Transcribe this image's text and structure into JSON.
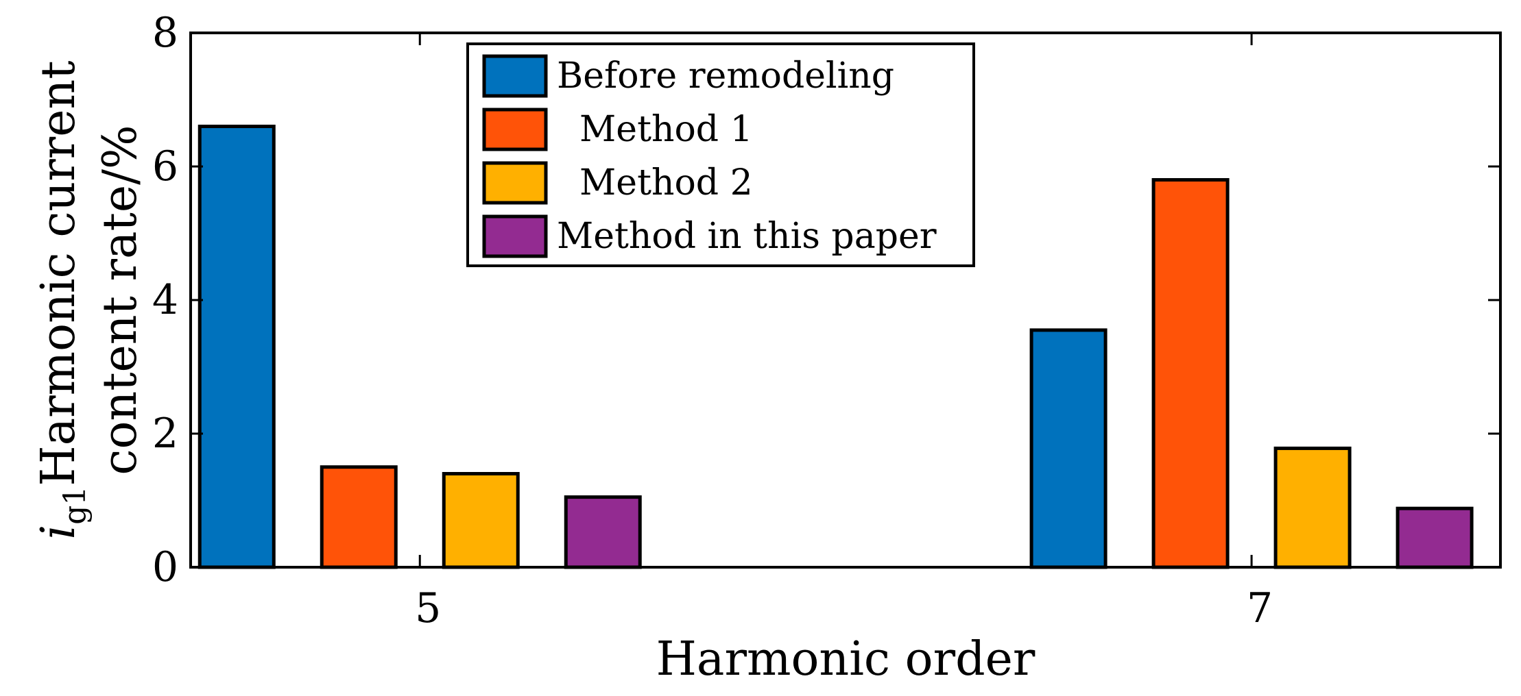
{
  "chart_data": {
    "type": "bar",
    "xlabel": "Harmonic order",
    "ylabel": {
      "line1_prefix_italic": "i",
      "line1_subscript": "g1",
      "line1_text": "Harmonic current",
      "line2": "content rate/%"
    },
    "categories": [
      "5",
      "7"
    ],
    "ylim": [
      0,
      8
    ],
    "yticks": [
      "0",
      "2",
      "4",
      "6",
      "8"
    ],
    "series": [
      {
        "name": "Before remodeling",
        "color": "#0072BD",
        "values": [
          6.6,
          3.55
        ]
      },
      {
        "name": "  Method 1",
        "color": "#FF5308",
        "values": [
          1.5,
          5.8
        ]
      },
      {
        "name": "  Method 2",
        "color": "#FFB000",
        "values": [
          1.4,
          1.78
        ]
      },
      {
        "name": "Method in this paper",
        "color": "#932B91",
        "values": [
          1.05,
          0.88
        ]
      }
    ],
    "legend_position": "top-center",
    "grid": false
  }
}
